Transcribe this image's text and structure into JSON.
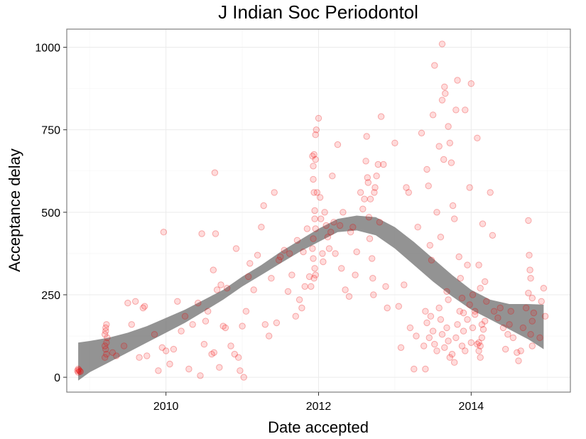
{
  "chart_data": {
    "type": "scatter",
    "title": "J Indian Soc Periodontol",
    "xlabel": "Date accepted",
    "ylabel": "Acceptance delay",
    "xlim": [
      2008.7,
      2015.3
    ],
    "ylim": [
      -45,
      1055
    ],
    "x_ticks": [
      2010,
      2012,
      2014
    ],
    "x_tick_labels": [
      "2010",
      "2012",
      "2014"
    ],
    "y_ticks": [
      0,
      250,
      500,
      750,
      1000
    ],
    "y_tick_labels": [
      "0",
      "250",
      "500",
      "750",
      "1000"
    ],
    "grid": true,
    "legend": "none",
    "point_color": "#ff0000",
    "band_color": "#808080",
    "smooth_band": {
      "x": [
        2008.85,
        2009.0,
        2009.25,
        2009.5,
        2009.75,
        2010.0,
        2010.25,
        2010.5,
        2010.75,
        2011.0,
        2011.25,
        2011.5,
        2011.75,
        2012.0,
        2012.25,
        2012.5,
        2012.75,
        2013.0,
        2013.25,
        2013.5,
        2013.75,
        2014.0,
        2014.25,
        2014.5,
        2014.75,
        2014.95
      ],
      "lower": [
        -10,
        15,
        45,
        75,
        105,
        135,
        165,
        200,
        235,
        275,
        310,
        345,
        380,
        410,
        440,
        445,
        430,
        390,
        340,
        290,
        245,
        205,
        175,
        145,
        115,
        85
      ],
      "upper": [
        105,
        110,
        120,
        135,
        155,
        180,
        205,
        235,
        265,
        305,
        340,
        380,
        415,
        450,
        480,
        490,
        485,
        455,
        410,
        360,
        310,
        265,
        235,
        222,
        222,
        220
      ]
    },
    "points": [
      [
        2008.85,
        15
      ],
      [
        2008.86,
        22
      ],
      [
        2008.87,
        18
      ],
      [
        2008.84,
        20
      ],
      [
        2008.88,
        17
      ],
      [
        2008.85,
        25
      ],
      [
        2009.2,
        60
      ],
      [
        2009.21,
        85
      ],
      [
        2009.22,
        105
      ],
      [
        2009.2,
        130
      ],
      [
        2009.21,
        150
      ],
      [
        2009.22,
        160
      ],
      [
        2009.23,
        120
      ],
      [
        2009.2,
        95
      ],
      [
        2009.21,
        140
      ],
      [
        2009.22,
        70
      ],
      [
        2009.3,
        75
      ],
      [
        2009.35,
        65
      ],
      [
        2009.45,
        95
      ],
      [
        2009.5,
        225
      ],
      [
        2009.55,
        160
      ],
      [
        2009.6,
        230
      ],
      [
        2009.65,
        60
      ],
      [
        2009.7,
        210
      ],
      [
        2009.72,
        215
      ],
      [
        2009.75,
        65
      ],
      [
        2009.85,
        130
      ],
      [
        2009.9,
        20
      ],
      [
        2009.95,
        90
      ],
      [
        2009.97,
        440
      ],
      [
        2010.0,
        80
      ],
      [
        2010.05,
        40
      ],
      [
        2010.1,
        85
      ],
      [
        2010.15,
        230
      ],
      [
        2010.2,
        140
      ],
      [
        2010.25,
        185
      ],
      [
        2010.3,
        25
      ],
      [
        2010.35,
        160
      ],
      [
        2010.42,
        225
      ],
      [
        2010.45,
        5
      ],
      [
        2010.47,
        435
      ],
      [
        2010.5,
        100
      ],
      [
        2010.52,
        170
      ],
      [
        2010.55,
        200
      ],
      [
        2010.6,
        70
      ],
      [
        2010.62,
        325
      ],
      [
        2010.63,
        75
      ],
      [
        2010.64,
        620
      ],
      [
        2010.65,
        435
      ],
      [
        2010.67,
        265
      ],
      [
        2010.7,
        30
      ],
      [
        2010.72,
        280
      ],
      [
        2010.75,
        155
      ],
      [
        2010.78,
        150
      ],
      [
        2010.8,
        270
      ],
      [
        2010.85,
        95
      ],
      [
        2010.9,
        70
      ],
      [
        2010.92,
        390
      ],
      [
        2010.95,
        60
      ],
      [
        2010.97,
        20
      ],
      [
        2011.0,
        155
      ],
      [
        2011.02,
        0
      ],
      [
        2011.05,
        200
      ],
      [
        2011.08,
        305
      ],
      [
        2011.1,
        345
      ],
      [
        2011.15,
        265
      ],
      [
        2011.2,
        370
      ],
      [
        2011.25,
        455
      ],
      [
        2011.28,
        520
      ],
      [
        2011.3,
        160
      ],
      [
        2011.35,
        125
      ],
      [
        2011.38,
        300
      ],
      [
        2011.42,
        560
      ],
      [
        2011.45,
        165
      ],
      [
        2011.48,
        355
      ],
      [
        2011.5,
        365
      ],
      [
        2011.55,
        385
      ],
      [
        2011.6,
        260
      ],
      [
        2011.62,
        375
      ],
      [
        2011.65,
        310
      ],
      [
        2011.7,
        185
      ],
      [
        2011.72,
        415
      ],
      [
        2011.75,
        235
      ],
      [
        2011.78,
        210
      ],
      [
        2011.8,
        380
      ],
      [
        2011.82,
        275
      ],
      [
        2011.85,
        450
      ],
      [
        2011.88,
        305
      ],
      [
        2011.9,
        275
      ],
      [
        2011.92,
        670
      ],
      [
        2011.93,
        600
      ],
      [
        2011.94,
        560
      ],
      [
        2011.95,
        505
      ],
      [
        2011.96,
        450
      ],
      [
        2011.93,
        420
      ],
      [
        2011.92,
        390
      ],
      [
        2011.95,
        330
      ],
      [
        2011.96,
        310
      ],
      [
        2011.94,
        300
      ],
      [
        2011.93,
        640
      ],
      [
        2011.96,
        735
      ],
      [
        2011.97,
        750
      ],
      [
        2011.94,
        675
      ],
      [
        2011.96,
        660
      ],
      [
        2011.95,
        480
      ],
      [
        2011.93,
        360
      ],
      [
        2011.98,
        560
      ],
      [
        2012.0,
        785
      ],
      [
        2012.02,
        545
      ],
      [
        2012.03,
        480
      ],
      [
        2012.05,
        375
      ],
      [
        2012.06,
        350
      ],
      [
        2012.08,
        500
      ],
      [
        2012.1,
        460
      ],
      [
        2012.12,
        425
      ],
      [
        2012.14,
        390
      ],
      [
        2012.16,
        440
      ],
      [
        2012.18,
        610
      ],
      [
        2012.2,
        470
      ],
      [
        2012.22,
        375
      ],
      [
        2012.25,
        705
      ],
      [
        2012.28,
        460
      ],
      [
        2012.3,
        330
      ],
      [
        2012.32,
        500
      ],
      [
        2012.35,
        265
      ],
      [
        2012.4,
        245
      ],
      [
        2012.42,
        440
      ],
      [
        2012.45,
        455
      ],
      [
        2012.48,
        310
      ],
      [
        2012.5,
        380
      ],
      [
        2012.55,
        560
      ],
      [
        2012.58,
        510
      ],
      [
        2012.6,
        540
      ],
      [
        2012.62,
        655
      ],
      [
        2012.63,
        730
      ],
      [
        2012.64,
        605
      ],
      [
        2012.65,
        590
      ],
      [
        2012.66,
        485
      ],
      [
        2012.67,
        420
      ],
      [
        2012.68,
        540
      ],
      [
        2012.7,
        360
      ],
      [
        2012.71,
        300
      ],
      [
        2012.72,
        250
      ],
      [
        2012.73,
        560
      ],
      [
        2012.74,
        575
      ],
      [
        2012.76,
        610
      ],
      [
        2012.78,
        645
      ],
      [
        2012.8,
        470
      ],
      [
        2012.82,
        790
      ],
      [
        2012.85,
        645
      ],
      [
        2012.88,
        275
      ],
      [
        2012.9,
        210
      ],
      [
        2013.0,
        710
      ],
      [
        2013.05,
        215
      ],
      [
        2013.08,
        90
      ],
      [
        2013.12,
        280
      ],
      [
        2013.15,
        575
      ],
      [
        2013.18,
        560
      ],
      [
        2013.2,
        150
      ],
      [
        2013.25,
        25
      ],
      [
        2013.28,
        125
      ],
      [
        2013.3,
        455
      ],
      [
        2013.35,
        740
      ],
      [
        2013.38,
        95
      ],
      [
        2013.4,
        25
      ],
      [
        2013.42,
        630
      ],
      [
        2013.44,
        580
      ],
      [
        2013.46,
        400
      ],
      [
        2013.48,
        355
      ],
      [
        2013.5,
        795
      ],
      [
        2013.52,
        945
      ],
      [
        2013.55,
        500
      ],
      [
        2013.58,
        700
      ],
      [
        2013.6,
        425
      ],
      [
        2013.62,
        840
      ],
      [
        2013.64,
        660
      ],
      [
        2013.66,
        860
      ],
      [
        2013.68,
        260
      ],
      [
        2013.7,
        235
      ],
      [
        2013.4,
        200
      ],
      [
        2013.42,
        165
      ],
      [
        2013.45,
        120
      ],
      [
        2013.47,
        185
      ],
      [
        2013.5,
        140
      ],
      [
        2013.52,
        100
      ],
      [
        2013.55,
        80
      ],
      [
        2013.58,
        210
      ],
      [
        2013.6,
        175
      ],
      [
        2013.62,
        130
      ],
      [
        2013.65,
        90
      ],
      [
        2013.68,
        150
      ],
      [
        2013.7,
        110
      ],
      [
        2013.72,
        60
      ],
      [
        2013.62,
        1010
      ],
      [
        2013.65,
        880
      ],
      [
        2013.7,
        760
      ],
      [
        2013.72,
        710
      ],
      [
        2013.74,
        650
      ],
      [
        2013.76,
        520
      ],
      [
        2013.78,
        480
      ],
      [
        2013.8,
        810
      ],
      [
        2013.82,
        900
      ],
      [
        2013.84,
        365
      ],
      [
        2013.86,
        300
      ],
      [
        2013.88,
        240
      ],
      [
        2013.9,
        195
      ],
      [
        2013.92,
        810
      ],
      [
        2013.75,
        70
      ],
      [
        2013.78,
        45
      ],
      [
        2013.8,
        120
      ],
      [
        2013.82,
        160
      ],
      [
        2013.85,
        200
      ],
      [
        2013.88,
        95
      ],
      [
        2013.9,
        140
      ],
      [
        2013.92,
        80
      ],
      [
        2013.95,
        175
      ],
      [
        2013.98,
        220
      ],
      [
        2014.0,
        105
      ],
      [
        2014.02,
        150
      ],
      [
        2014.05,
        190
      ],
      [
        2014.08,
        100
      ],
      [
        2013.95,
        340
      ],
      [
        2013.98,
        575
      ],
      [
        2014.0,
        890
      ],
      [
        2014.02,
        250
      ],
      [
        2014.05,
        200
      ],
      [
        2014.08,
        725
      ],
      [
        2014.1,
        340
      ],
      [
        2014.12,
        270
      ],
      [
        2014.15,
        465
      ],
      [
        2014.18,
        290
      ],
      [
        2014.2,
        230
      ],
      [
        2014.1,
        80
      ],
      [
        2014.12,
        95
      ],
      [
        2014.14,
        120
      ],
      [
        2014.16,
        145
      ],
      [
        2014.18,
        170
      ],
      [
        2014.1,
        105
      ],
      [
        2014.12,
        60
      ],
      [
        2014.14,
        160
      ],
      [
        2014.25,
        560
      ],
      [
        2014.28,
        430
      ],
      [
        2014.3,
        200
      ],
      [
        2014.35,
        180
      ],
      [
        2014.38,
        210
      ],
      [
        2014.42,
        150
      ],
      [
        2014.45,
        85
      ],
      [
        2014.48,
        130
      ],
      [
        2014.5,
        160
      ],
      [
        2014.52,
        200
      ],
      [
        2014.55,
        120
      ],
      [
        2014.6,
        75
      ],
      [
        2014.62,
        50
      ],
      [
        2014.65,
        80
      ],
      [
        2014.68,
        150
      ],
      [
        2014.72,
        210
      ],
      [
        2014.75,
        255
      ],
      [
        2014.78,
        130
      ],
      [
        2014.8,
        170
      ],
      [
        2014.75,
        475
      ],
      [
        2014.76,
        370
      ],
      [
        2014.77,
        325
      ],
      [
        2014.78,
        300
      ],
      [
        2014.8,
        240
      ],
      [
        2014.82,
        195
      ],
      [
        2014.9,
        120
      ],
      [
        2014.92,
        230
      ],
      [
        2014.95,
        270
      ],
      [
        2014.97,
        185
      ],
      [
        2014.8,
        95
      ]
    ]
  }
}
